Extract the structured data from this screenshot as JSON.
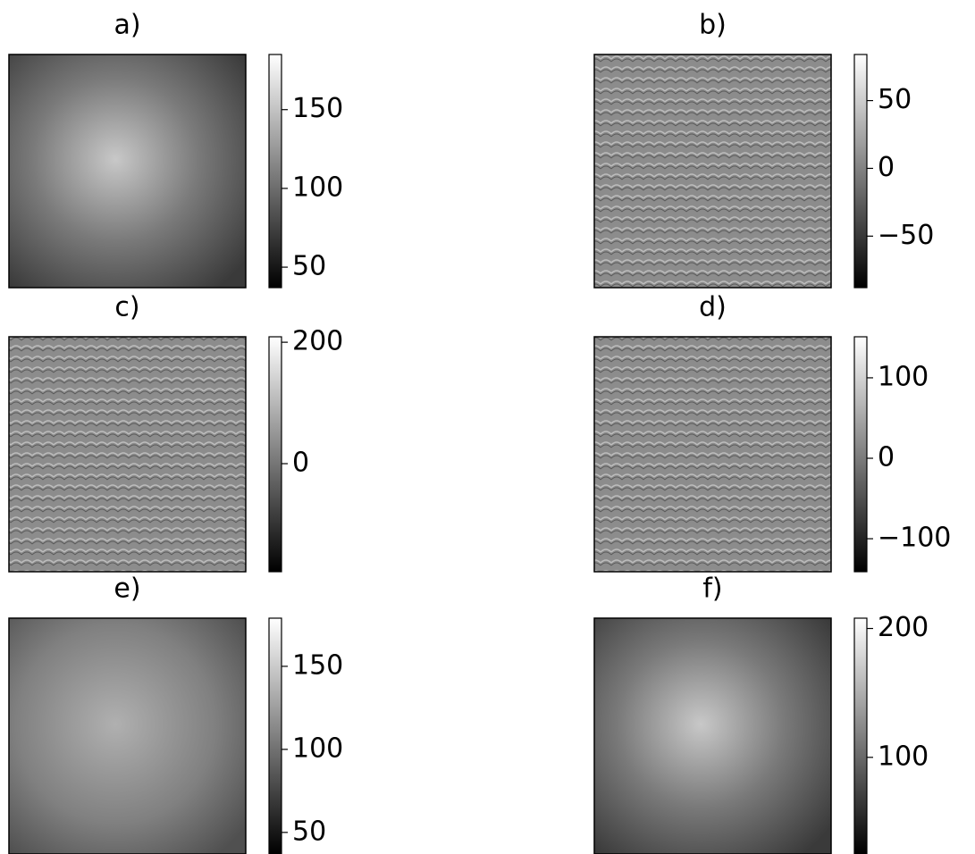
{
  "chart_data": [
    {
      "type": "image",
      "title": "a)",
      "ylim": [
        37,
        185
      ],
      "yticks": [
        50,
        100,
        150
      ]
    },
    {
      "type": "image",
      "title": "b)",
      "ylim": [
        -88,
        84
      ],
      "yticks": [
        {
          "value": -50,
          "label": "−50"
        },
        0,
        50
      ]
    },
    {
      "type": "image",
      "title": "c)",
      "ylim": [
        -178,
        209
      ],
      "yticks": [
        0,
        200
      ]
    },
    {
      "type": "image",
      "title": "d)",
      "ylim": [
        -141,
        151
      ],
      "yticks": [
        {
          "value": -100,
          "label": "−100"
        },
        0,
        100
      ]
    },
    {
      "type": "image",
      "title": "e)",
      "ylim": [
        37,
        179
      ],
      "yticks": [
        50,
        100,
        150
      ]
    },
    {
      "type": "image",
      "title": "f)",
      "ylim": [
        25,
        208
      ],
      "yticks": [
        100,
        200
      ]
    }
  ]
}
